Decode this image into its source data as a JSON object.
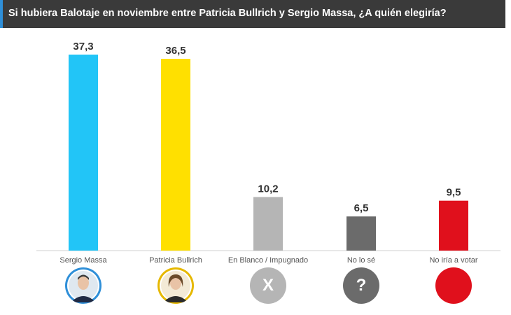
{
  "chart_data": {
    "type": "bar",
    "title": "Si hubiera Balotaje en noviembre entre Patricia Bullrich y Sergio Massa, ¿A quién elegiría?",
    "categories": [
      "Sergio Massa",
      "Patricia Bullrich",
      "En Blanco / Impugnado",
      "No lo sé",
      "No iría a votar"
    ],
    "values": [
      37.3,
      36.5,
      10.2,
      6.5,
      9.5
    ],
    "value_labels": [
      "37,3",
      "36,5",
      "10,2",
      "6,5",
      "9,5"
    ],
    "colors": [
      "#22c5f7",
      "#ffe000",
      "#b5b5b5",
      "#6b6b6b",
      "#e0101c"
    ],
    "xlabel": "",
    "ylabel": "",
    "ylim": [
      0,
      40
    ],
    "grid": false,
    "legend": "none"
  },
  "icons": [
    {
      "name": "sergio-massa-photo-icon",
      "kind": "photo",
      "bg": "#2f8fd8"
    },
    {
      "name": "patricia-bullrich-photo-icon",
      "kind": "photo",
      "bg": "#e6b800"
    },
    {
      "name": "x-circle-icon",
      "kind": "glyph",
      "glyph": "X",
      "bg": "#b5b5b5"
    },
    {
      "name": "question-circle-icon",
      "kind": "glyph",
      "glyph": "?",
      "bg": "#6b6b6b"
    },
    {
      "name": "red-circle-icon",
      "kind": "plain",
      "bg": "#e0101c"
    }
  ]
}
